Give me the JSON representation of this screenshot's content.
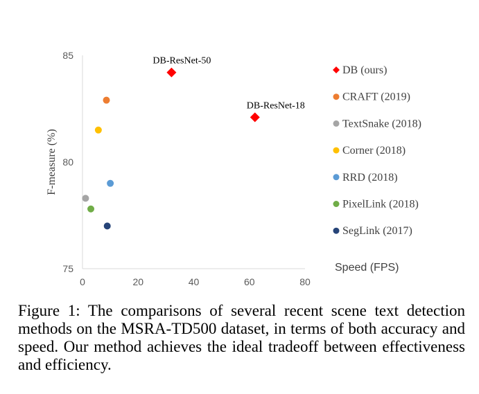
{
  "chart_data": {
    "type": "scatter",
    "title": "",
    "xlabel": "Speed (FPS)",
    "ylabel": "F-measure (%)",
    "xlim": [
      0,
      80
    ],
    "ylim": [
      75,
      85
    ],
    "x_ticks": [
      "0",
      "20",
      "40",
      "60",
      "80"
    ],
    "y_ticks": [
      "75",
      "80",
      "85"
    ],
    "grid": false,
    "legend_position": "right",
    "series": [
      {
        "name": "DB (ours)",
        "color": "#ff0000",
        "marker": "diamond",
        "points": [
          [
            32,
            84.2
          ],
          [
            62,
            82.1
          ]
        ]
      },
      {
        "name": "CRAFT (2019)",
        "color": "#ed7d31",
        "marker": "circle",
        "points": [
          [
            8.6,
            82.9
          ]
        ]
      },
      {
        "name": "TextSnake (2018)",
        "color": "#a5a5a5",
        "marker": "circle",
        "points": [
          [
            1.1,
            78.3
          ]
        ]
      },
      {
        "name": "Corner (2018)",
        "color": "#ffc000",
        "marker": "circle",
        "points": [
          [
            5.7,
            81.5
          ]
        ]
      },
      {
        "name": "RRD (2018)",
        "color": "#5b9bd5",
        "marker": "circle",
        "points": [
          [
            10,
            79.0
          ]
        ]
      },
      {
        "name": "PixelLink (2018)",
        "color": "#70ad47",
        "marker": "circle",
        "points": [
          [
            3,
            77.8
          ]
        ]
      },
      {
        "name": "SegLink (2017)",
        "color": "#264478",
        "marker": "circle",
        "points": [
          [
            8.9,
            77.0
          ]
        ]
      }
    ],
    "annotations": [
      {
        "text": "DB-ResNet-50",
        "x": 32,
        "y": 84.2
      },
      {
        "text": "DB-ResNet-18",
        "x": 62,
        "y": 82.1
      }
    ]
  },
  "caption": "Figure 1: The comparisons of several recent scene text detection methods on the MSRA-TD500 dataset, in terms of both accuracy and speed. Our method achieves the ideal tradeoff between effectiveness and efficiency."
}
